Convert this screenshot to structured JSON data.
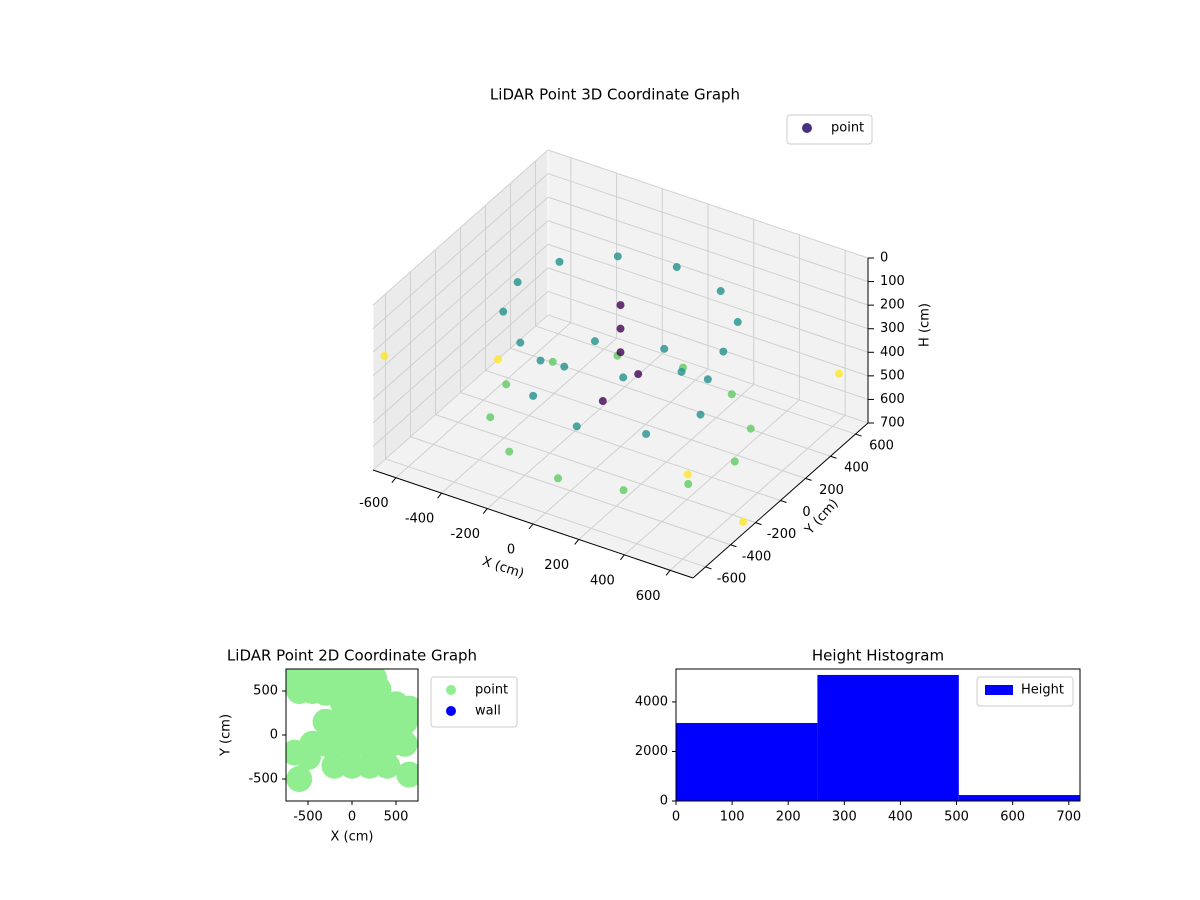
{
  "chart_data": [
    {
      "type": "scatter3d",
      "title": "LiDAR Point 3D Coordinate Graph",
      "xlabel": "X (cm)",
      "ylabel": "Y (cm)",
      "zlabel": "H (cm)",
      "xlim": [
        -700,
        700
      ],
      "ylim": [
        -700,
        700
      ],
      "zlim": [
        700,
        0
      ],
      "xticks": [
        -600,
        -400,
        -200,
        0,
        200,
        400,
        600
      ],
      "yticks": [
        -600,
        -400,
        -200,
        0,
        200,
        400,
        600
      ],
      "zticks": [
        0,
        100,
        200,
        300,
        400,
        500,
        600,
        700
      ],
      "grid": true,
      "legend": "upper right",
      "colormap": [
        "#440154",
        "#3b528b",
        "#21918c",
        "#5ec962",
        "#fde725"
      ],
      "series": [
        {
          "name": "point",
          "color": "#46327e",
          "x": [
            500,
            433,
            250,
            0,
            -250,
            -433,
            -500,
            -433,
            -250,
            0,
            250,
            433,
            450,
            390,
            225,
            0,
            -225,
            -390,
            -450,
            -390,
            -225,
            0,
            225,
            390,
            350,
            247,
            0,
            -247,
            -350,
            -247,
            0,
            247,
            0,
            0,
            0,
            50,
            -50,
            650,
            600,
            -700,
            700,
            -650
          ],
          "y": [
            0,
            250,
            433,
            500,
            433,
            250,
            0,
            -250,
            -433,
            -500,
            -433,
            -250,
            0,
            225,
            390,
            450,
            390,
            225,
            0,
            -225,
            -390,
            -450,
            -390,
            -225,
            0,
            247,
            350,
            247,
            0,
            -247,
            -350,
            -247,
            0,
            0,
            0,
            50,
            -50,
            -650,
            650,
            300,
            -300,
            -700
          ],
          "z": [
            600,
            600,
            600,
            600,
            600,
            600,
            600,
            600,
            600,
            600,
            600,
            600,
            150,
            150,
            150,
            150,
            150,
            150,
            150,
            150,
            150,
            150,
            150,
            150,
            450,
            450,
            450,
            450,
            450,
            450,
            450,
            450,
            100,
            200,
            300,
            400,
            500,
            300,
            500,
            700,
            650,
            200
          ]
        }
      ]
    },
    {
      "type": "scatter",
      "title": "LiDAR Point 2D Coordinate Graph",
      "xlabel": "X (cm)",
      "ylabel": "Y (cm)",
      "xlim": [
        -750,
        750
      ],
      "ylim": [
        -750,
        750
      ],
      "xticks": [
        -500,
        0,
        500
      ],
      "yticks": [
        -500,
        0,
        500
      ],
      "legend": "outside right",
      "series": [
        {
          "name": "point",
          "color": "#90ee90",
          "x": [
            -650,
            -500,
            -350,
            -200,
            -50,
            100,
            250,
            -600,
            -450,
            -300,
            -150,
            0,
            150,
            300,
            -100,
            50,
            200,
            350,
            500,
            650,
            -300,
            -150,
            0,
            150,
            300,
            450,
            600,
            -450,
            -300,
            -150,
            0,
            150,
            300,
            450,
            600,
            -650,
            -500,
            -600,
            -200,
            0,
            200,
            400,
            650
          ],
          "y": [
            650,
            650,
            650,
            650,
            650,
            650,
            650,
            500,
            500,
            480,
            500,
            500,
            500,
            520,
            350,
            350,
            350,
            350,
            350,
            300,
            150,
            150,
            150,
            150,
            150,
            150,
            150,
            -100,
            -100,
            -100,
            -100,
            -100,
            -100,
            -100,
            -100,
            -200,
            -250,
            -500,
            -350,
            -350,
            -350,
            -350,
            -450
          ]
        },
        {
          "name": "wall",
          "color": "#0000ff",
          "x": [],
          "y": []
        }
      ]
    },
    {
      "type": "histogram",
      "title": "Height Histogram",
      "bins": [
        0,
        252,
        504,
        756
      ],
      "counts": [
        3150,
        5090,
        240
      ],
      "xlim": [
        0,
        720
      ],
      "ylim": [
        0,
        5330
      ],
      "xticks": [
        0,
        100,
        200,
        300,
        400,
        500,
        600,
        700
      ],
      "yticks": [
        0,
        2000,
        4000
      ],
      "legend": "upper right",
      "series": [
        {
          "name": "Height",
          "color": "#0000ff"
        }
      ]
    }
  ]
}
